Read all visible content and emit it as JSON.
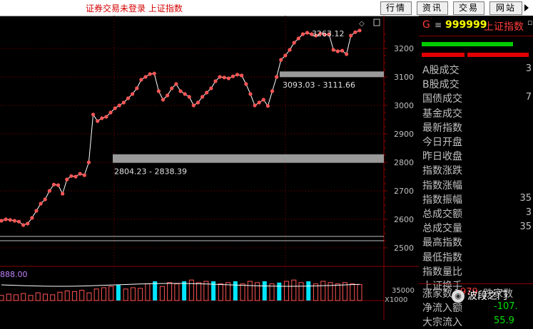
{
  "app": {
    "title": "证券交易未登录 上证指数"
  },
  "toolbar": {
    "buttons": [
      "行情",
      "资讯",
      "交易",
      "网站"
    ]
  },
  "colors": {
    "accent": "#ff3b3b",
    "up": "#ff5555",
    "volume_up": "#00e5ff",
    "band": "#9a9a9a",
    "grid": "#8b0000"
  },
  "chart": {
    "y_ticks": [
      "3200",
      "3100",
      "3000",
      "2900",
      "2800",
      "2700",
      "2600",
      "2500"
    ],
    "annotations": {
      "upper_band": "3093.03 - 3111.66",
      "lower_band": "2804.23 - 2838.39",
      "peak": "3263.12"
    },
    "volume_label": "888.00",
    "volume_tick": "35000",
    "volume_unit": "X1000"
  },
  "chart_data": {
    "type": "line",
    "ylim": [
      2500,
      3270
    ],
    "series": [
      {
        "values": [
          2595,
          2600,
          2598,
          2595,
          2592,
          2580,
          2585,
          2605,
          2630,
          2655,
          2670,
          2700,
          2722,
          2720,
          2690,
          2740,
          2752,
          2750,
          2760,
          2755,
          2800,
          2968,
          2945,
          2955,
          2960,
          2975,
          2990,
          3000,
          3010,
          3025,
          3040,
          3060,
          3090,
          3100,
          3110,
          3112,
          3050,
          3020,
          3035,
          3060,
          3075,
          3050,
          3040,
          3030,
          3000,
          3010,
          3030,
          3045,
          3060,
          3085,
          3100,
          3098,
          3095,
          3102,
          3108,
          3105,
          3075,
          3040,
          3000,
          3010,
          3020,
          2998,
          3050,
          3100,
          3160,
          3175,
          3195,
          3220,
          3235,
          3250,
          3255,
          3250,
          3245,
          3252,
          3248,
          3250,
          3195,
          3190,
          3192,
          3180,
          3245,
          3257,
          3263
        ]
      }
    ],
    "volume": [
      {
        "v": 8,
        "up": false
      },
      {
        "v": 10,
        "up": false
      },
      {
        "v": 9,
        "up": false
      },
      {
        "v": 11,
        "up": false
      },
      {
        "v": 8,
        "up": false
      },
      {
        "v": 12,
        "up": false
      },
      {
        "v": 10,
        "up": false
      },
      {
        "v": 9,
        "up": false
      },
      {
        "v": 13,
        "up": false
      },
      {
        "v": 15,
        "up": false
      },
      {
        "v": 14,
        "up": false
      },
      {
        "v": 16,
        "up": false
      },
      {
        "v": 12,
        "up": false
      },
      {
        "v": 18,
        "up": false
      },
      {
        "v": 20,
        "up": false
      },
      {
        "v": 22,
        "up": false
      },
      {
        "v": 24,
        "up": true
      },
      {
        "v": 18,
        "up": false
      },
      {
        "v": 20,
        "up": false
      },
      {
        "v": 19,
        "up": false
      },
      {
        "v": 26,
        "up": false
      },
      {
        "v": 30,
        "up": true
      },
      {
        "v": 22,
        "up": false
      },
      {
        "v": 28,
        "up": false
      },
      {
        "v": 26,
        "up": false
      },
      {
        "v": 30,
        "up": true
      },
      {
        "v": 32,
        "up": false
      },
      {
        "v": 28,
        "up": false
      },
      {
        "v": 30,
        "up": false
      },
      {
        "v": 30,
        "up": true
      },
      {
        "v": 26,
        "up": false
      },
      {
        "v": 28,
        "up": false
      },
      {
        "v": 30,
        "up": true
      },
      {
        "v": 26,
        "up": false
      },
      {
        "v": 30,
        "up": false
      },
      {
        "v": 28,
        "up": false
      },
      {
        "v": 30,
        "up": true
      },
      {
        "v": 26,
        "up": false
      },
      {
        "v": 28,
        "up": true
      },
      {
        "v": 30,
        "up": false
      },
      {
        "v": 32,
        "up": false
      },
      {
        "v": 28,
        "up": false
      },
      {
        "v": 30,
        "up": true
      },
      {
        "v": 26,
        "up": false
      },
      {
        "v": 30,
        "up": false
      },
      {
        "v": 28,
        "up": false
      },
      {
        "v": 26,
        "up": false
      },
      {
        "v": 28,
        "up": false
      },
      {
        "v": 26,
        "up": false
      },
      {
        "v": 25,
        "up": false
      }
    ]
  },
  "panel": {
    "code_prefix": "G",
    "code_mark": "≡",
    "code": "999999",
    "name": "上证指数",
    "name_suffix": "▫",
    "rows": [
      {
        "label": "A股成交",
        "value": "3"
      },
      {
        "label": "B股成交",
        "value": ""
      },
      {
        "label": "国债成交",
        "value": "7"
      },
      {
        "label": "基金成交",
        "value": ""
      },
      {
        "label": "最新指数",
        "value": ""
      },
      {
        "label": "今日开盘",
        "value": ""
      },
      {
        "label": "昨日收盘",
        "value": ""
      },
      {
        "label": "指数涨跌",
        "value": ""
      },
      {
        "label": "指数涨幅",
        "value": ""
      },
      {
        "label": "指数振幅",
        "value": "35"
      },
      {
        "label": "总成交额",
        "value": "3"
      },
      {
        "label": "总成交量",
        "value": "35"
      },
      {
        "label": "最高指数",
        "value": ""
      },
      {
        "label": "最低指数",
        "value": ""
      },
      {
        "label": "指数量比",
        "value": ""
      },
      {
        "label": "上证换手",
        "value": ""
      }
    ],
    "footer": [
      {
        "label": "涨家数",
        "value": "979",
        "label2": "跌家数"
      },
      {
        "label": "净流入额",
        "value": "-107."
      },
      {
        "label": "大宗流入",
        "value": "55.9"
      }
    ]
  },
  "watermark": "波段之门"
}
